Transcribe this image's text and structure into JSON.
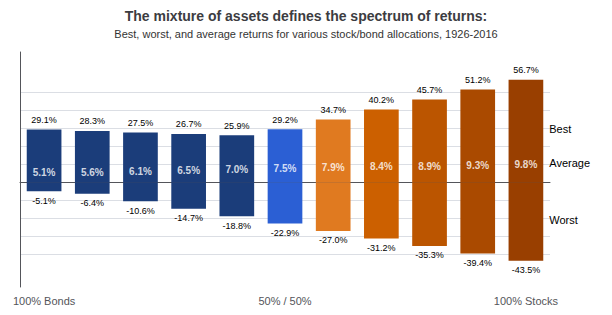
{
  "chart_data": {
    "type": "bar",
    "title": "The mixture of assets defines the spectrum of returns:",
    "subtitle": "Best, worst, and average returns for various stock/bond allocations, 1926-2016",
    "categories": [
      "100% Bonds",
      null,
      null,
      null,
      null,
      "50% / 50%",
      null,
      null,
      null,
      null,
      "100% Stocks"
    ],
    "series": [
      {
        "name": "Best",
        "type": "bar",
        "colors": [
          "#1b3d7a",
          "#1b3d7a",
          "#1b3d7a",
          "#1b3d7a",
          "#1b3d7a",
          "#2b5fd4",
          "#e07a20",
          "#cc6000",
          "#bb5500",
          "#aa4a00",
          "#993f00"
        ],
        "values": [
          29.1,
          28.3,
          27.5,
          26.7,
          25.9,
          29.2,
          34.7,
          40.2,
          45.7,
          51.2,
          56.7
        ],
        "value_labels": [
          "29.1%",
          "28.3%",
          "27.5%",
          "26.7%",
          "25.9%",
          "29.2%",
          "34.7%",
          "40.2%",
          "45.7%",
          "51.2%",
          "56.7%"
        ]
      },
      {
        "name": "Average",
        "type": "scatter",
        "values": [
          5.1,
          5.6,
          6.1,
          6.5,
          7.0,
          7.5,
          7.9,
          8.4,
          8.9,
          9.3,
          9.8
        ],
        "value_labels": [
          "5.1%",
          "5.6%",
          "6.1%",
          "6.5%",
          "7.0%",
          "7.5%",
          "7.9%",
          "8.4%",
          "8.9%",
          "9.3%",
          "9.8%"
        ]
      },
      {
        "name": "Worst",
        "type": "bar",
        "colors": [
          "#1b3d7a",
          "#1b3d7a",
          "#1b3d7a",
          "#1b3d7a",
          "#1b3d7a",
          "#2b5fd4",
          "#e07a20",
          "#cc6000",
          "#bb5500",
          "#aa4a00",
          "#993f00"
        ],
        "values": [
          -5.1,
          -6.4,
          -10.6,
          -14.7,
          -18.8,
          -22.9,
          -27.0,
          -31.2,
          -35.3,
          -39.4,
          -43.5
        ],
        "value_labels": [
          "-5.1%",
          "-6.4%",
          "-10.6%",
          "-14.7%",
          "-18.8%",
          "-22.9%",
          "-27.0%",
          "-31.2%",
          "-35.3%",
          "-39.4%",
          "-43.5%"
        ]
      }
    ],
    "ylim": [
      -58,
      72
    ],
    "yticks": [
      -40,
      -30,
      -20,
      -10,
      0,
      10,
      20,
      30,
      40,
      50
    ],
    "grid": true,
    "tick_labels": "x",
    "data_labels": true
  }
}
